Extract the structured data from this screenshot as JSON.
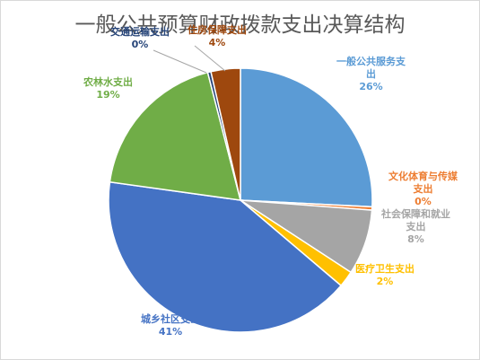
{
  "chart_data": {
    "type": "pie",
    "title": "一般公共预算财政拨款支出决算结构",
    "slices": [
      {
        "label": "一般公共服务支出",
        "label_lines": [
          "一般公共服务支",
          "出"
        ],
        "pct_text": "26%",
        "value": 25.8,
        "color": "#5b9bd5"
      },
      {
        "label": "文化体育与传媒支出",
        "label_lines": [
          "文化体育与传媒",
          "支出"
        ],
        "pct_text": "0%",
        "value": 0.4,
        "color": "#ed7d31"
      },
      {
        "label": "社会保障和就业支出",
        "label_lines": [
          "社会保障和就业",
          "支出"
        ],
        "pct_text": "8%",
        "value": 8.0,
        "color": "#a5a5a5"
      },
      {
        "label": "医疗卫生支出",
        "label_lines": [
          "医疗卫生支出"
        ],
        "pct_text": "2%",
        "value": 2.0,
        "color": "#ffc000"
      },
      {
        "label": "城乡社区支出",
        "label_lines": [
          "城乡社区支出"
        ],
        "pct_text": "41%",
        "value": 41.0,
        "color": "#4472c4"
      },
      {
        "label": "农林水支出",
        "label_lines": [
          "农林水支出"
        ],
        "pct_text": "19%",
        "value": 18.8,
        "color": "#70ad47"
      },
      {
        "label": "交通运输支出",
        "label_lines": [
          "交通运输支出"
        ],
        "pct_text": "0%",
        "value": 0.4,
        "color": "#264478"
      },
      {
        "label": "住房保障支出",
        "label_lines": [
          "住房保障支出"
        ],
        "pct_text": "4%",
        "value": 3.6,
        "color": "#9e480e"
      }
    ],
    "start_position": "top",
    "direction": "clockwise",
    "legend": "none"
  }
}
